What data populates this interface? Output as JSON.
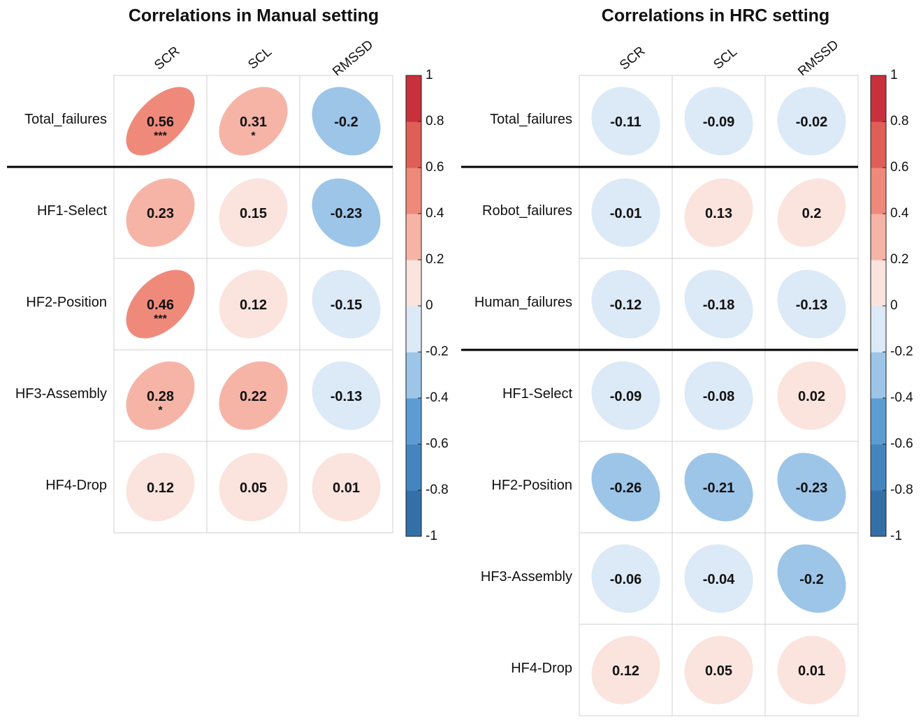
{
  "chart_data": [
    {
      "type": "correlation",
      "title": "Correlations in Manual setting",
      "columns": [
        "SCR",
        "SCL",
        "RMSSD"
      ],
      "rows": [
        "Total_failures",
        "HF1-Select",
        "HF2-Position",
        "HF3-Assembly",
        "HF4-Drop"
      ],
      "values": [
        [
          0.56,
          0.31,
          -0.2
        ],
        [
          0.23,
          0.15,
          -0.23
        ],
        [
          0.46,
          0.12,
          -0.15
        ],
        [
          0.28,
          0.22,
          -0.13
        ],
        [
          0.12,
          0.05,
          0.01
        ]
      ],
      "significance": [
        [
          "***",
          "*",
          null
        ],
        [
          null,
          null,
          null
        ],
        [
          "***",
          null,
          null
        ],
        [
          "*",
          null,
          null
        ],
        [
          null,
          null,
          null
        ]
      ],
      "separators_after": [
        0
      ],
      "clim": [
        -1,
        1
      ],
      "cticks": [
        1,
        0.8,
        0.6,
        0.4,
        0.2,
        0,
        -0.2,
        -0.4,
        -0.6,
        -0.8,
        -1
      ],
      "colors": [
        "#3370a8",
        "#4485bf",
        "#5b9dd3",
        "#9cc5e8",
        "#dce9f6",
        "#fbe4de",
        "#f6b4a7",
        "#ef8a7b",
        "#df5e56",
        "#c8313b"
      ]
    },
    {
      "type": "correlation",
      "title": "Correlations in HRC setting",
      "columns": [
        "SCR",
        "SCL",
        "RMSSD"
      ],
      "rows": [
        "Total_failures",
        "Robot_failures",
        "Human_failures",
        "HF1-Select",
        "HF2-Position",
        "HF3-Assembly",
        "HF4-Drop"
      ],
      "values": [
        [
          -0.11,
          -0.09,
          -0.02
        ],
        [
          -0.01,
          0.13,
          0.2
        ],
        [
          -0.12,
          -0.18,
          -0.13
        ],
        [
          -0.09,
          -0.08,
          0.02
        ],
        [
          -0.26,
          -0.21,
          -0.23
        ],
        [
          -0.06,
          -0.04,
          -0.2
        ],
        [
          0.12,
          0.05,
          0.01
        ]
      ],
      "separators_after": [
        0,
        2
      ],
      "clim": [
        -1,
        1
      ],
      "cticks": [
        1,
        0.8,
        0.6,
        0.4,
        0.2,
        0,
        -0.2,
        -0.4,
        -0.6,
        -0.8,
        -1
      ],
      "colors": [
        "#3370a8",
        "#4485bf",
        "#5b9dd3",
        "#9cc5e8",
        "#dce9f6",
        "#fbe4de",
        "#f6b4a7",
        "#ef8a7b",
        "#df5e56",
        "#c8313b"
      ]
    }
  ]
}
